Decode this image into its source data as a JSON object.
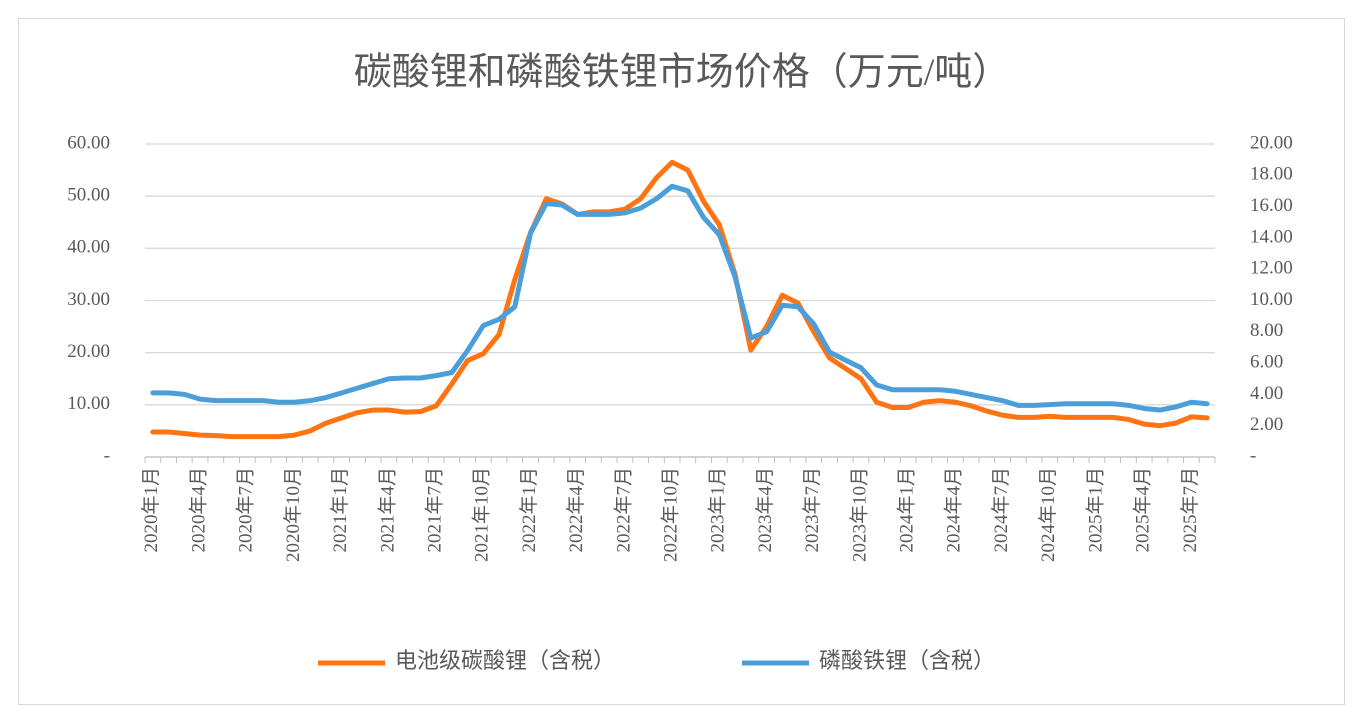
{
  "chart_data": {
    "type": "line",
    "title": "碳酸锂和磷酸铁锂市场价格（万元/吨）",
    "categories": [
      "2020年1月",
      null,
      null,
      "2020年4月",
      null,
      null,
      "2020年7月",
      null,
      null,
      "2020年10月",
      null,
      null,
      "2021年1月",
      null,
      null,
      "2021年4月",
      null,
      null,
      "2021年7月",
      null,
      null,
      "2021年10月",
      null,
      null,
      "2022年1月",
      null,
      null,
      "2022年4月",
      null,
      null,
      "2022年7月",
      null,
      null,
      "2022年10月",
      null,
      null,
      "2023年1月",
      null,
      null,
      "2023年4月",
      null,
      null,
      "2023年7月",
      null,
      null,
      "2023年10月",
      null,
      null,
      "2024年1月",
      null,
      null,
      "2024年4月",
      null,
      null,
      "2024年7月",
      null,
      null,
      "2024年10月",
      null,
      null,
      "2025年1月",
      null,
      null,
      "2025年4月",
      null,
      null,
      "2025年7月",
      null
    ],
    "series": [
      {
        "name": "电池级碳酸锂（含税）",
        "color": "#ff7412",
        "axis": "y",
        "values": [
          4.8,
          4.8,
          4.5,
          4.2,
          4.1,
          3.9,
          3.9,
          3.9,
          3.9,
          4.2,
          5.0,
          6.5,
          7.5,
          8.5,
          9.0,
          9.0,
          8.6,
          8.7,
          9.8,
          14.0,
          18.5,
          19.8,
          23.5,
          34.0,
          43.0,
          49.5,
          48.5,
          46.5,
          47.0,
          47.0,
          47.5,
          49.5,
          53.5,
          56.5,
          55.0,
          49.0,
          44.5,
          35.0,
          20.5,
          25.0,
          31.0,
          29.5,
          24.0,
          19.0,
          17.0,
          15.0,
          10.5,
          9.5,
          9.5,
          10.5,
          10.8,
          10.5,
          9.8,
          8.8,
          8.0,
          7.6,
          7.6,
          7.8,
          7.6,
          7.6,
          7.6,
          7.6,
          7.2,
          6.3,
          6.0,
          6.5,
          7.7,
          7.5
        ]
      },
      {
        "name": "磷酸铁锂（含税）",
        "color": "#4a9fdb",
        "axis": "y2",
        "values": [
          4.1,
          4.1,
          4.0,
          3.7,
          3.6,
          3.6,
          3.6,
          3.6,
          3.5,
          3.5,
          3.6,
          3.8,
          4.1,
          4.4,
          4.7,
          5.0,
          5.05,
          5.05,
          5.2,
          5.4,
          6.8,
          8.4,
          8.8,
          9.6,
          14.3,
          16.2,
          16.1,
          15.5,
          15.5,
          15.5,
          15.6,
          15.9,
          16.5,
          17.3,
          17.0,
          15.3,
          14.2,
          11.5,
          7.6,
          8.0,
          9.7,
          9.6,
          8.5,
          6.7,
          6.2,
          5.7,
          4.6,
          4.3,
          4.3,
          4.3,
          4.3,
          4.2,
          4.0,
          3.8,
          3.6,
          3.3,
          3.3,
          3.35,
          3.4,
          3.4,
          3.4,
          3.4,
          3.3,
          3.1,
          3.0,
          3.2,
          3.5,
          3.4
        ]
      }
    ],
    "ylim": [
      0,
      60
    ],
    "yticks": [
      {
        "value": 0,
        "label": "-"
      },
      {
        "value": 10,
        "label": "10.00"
      },
      {
        "value": 20,
        "label": "20.00"
      },
      {
        "value": 30,
        "label": "30.00"
      },
      {
        "value": 40,
        "label": "40.00"
      },
      {
        "value": 50,
        "label": "50.00"
      },
      {
        "value": 60,
        "label": "60.00"
      }
    ],
    "y2lim": [
      0,
      20
    ],
    "y2ticks": [
      {
        "value": 0,
        "label": "-"
      },
      {
        "value": 2,
        "label": "2.00"
      },
      {
        "value": 4,
        "label": "4.00"
      },
      {
        "value": 6,
        "label": "6.00"
      },
      {
        "value": 8,
        "label": "8.00"
      },
      {
        "value": 10,
        "label": "10.00"
      },
      {
        "value": 12,
        "label": "12.00"
      },
      {
        "value": 14,
        "label": "14.00"
      },
      {
        "value": 16,
        "label": "16.00"
      },
      {
        "value": 18,
        "label": "18.00"
      },
      {
        "value": 20,
        "label": "20.00"
      }
    ],
    "grid": true,
    "legend": "bottom"
  }
}
